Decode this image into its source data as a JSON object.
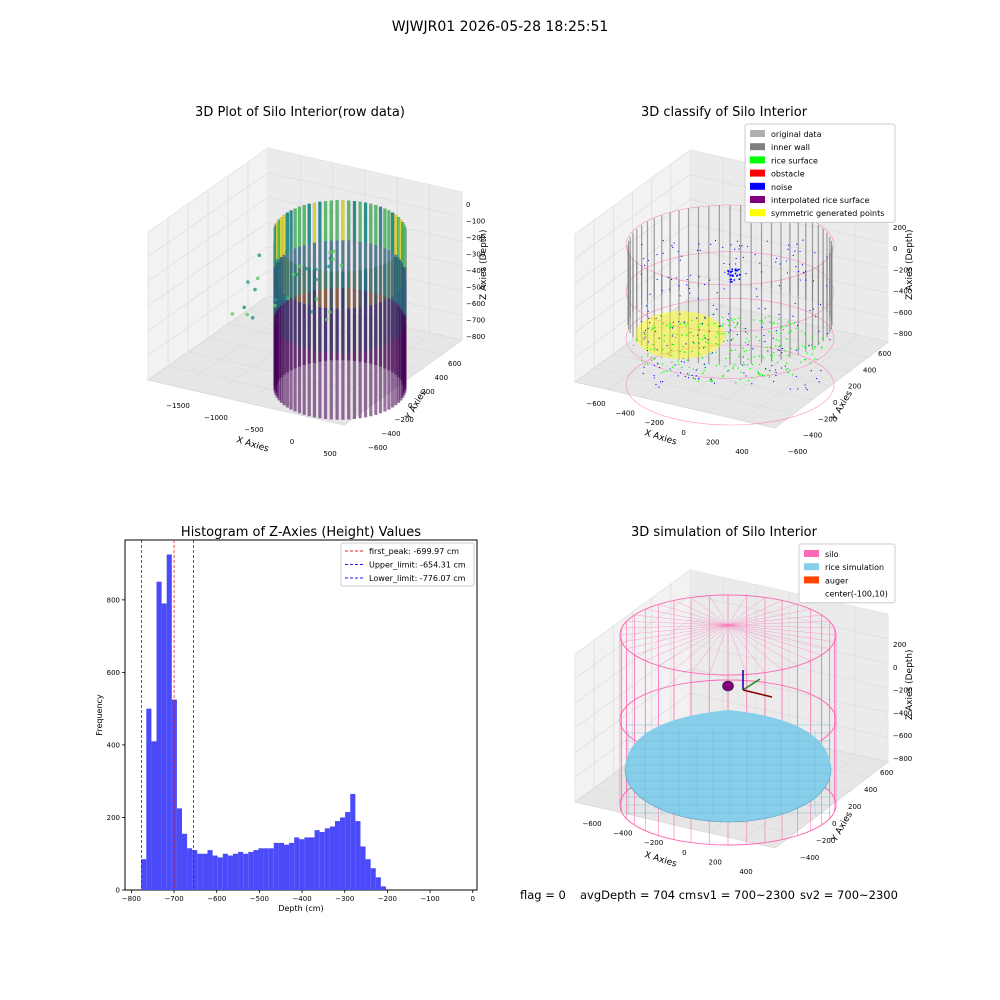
{
  "figure_title": "WJWJR01 2026-05-28 18:25:51",
  "colors": {
    "axis": "#000000",
    "pane": "#f2f2f2",
    "grid": "#d9d9d9",
    "hist_bar": "#4a4af8",
    "line_red": "#e02020",
    "line_blue": "#1a1af0",
    "viridis": [
      "#440154",
      "#3b528b",
      "#21918c",
      "#5ec962",
      "#fde725"
    ],
    "silo_pink": "#ff69b4",
    "rice_blue": "#87ceeb",
    "auger_orange": "#ff4500",
    "inner_wall_gray": "#808080",
    "noise_blue": "#0000ff",
    "rice_green": "#00ff00",
    "symmetric_yellow": "#ffff00",
    "interp_purple": "#800080",
    "obstacle_red": "#ff0000",
    "original_gray": "#b0b0b0"
  },
  "panels": {
    "raw": {
      "title": "3D Plot of Silo Interior(row data)",
      "xlabel": "X Axies",
      "ylabel": "Y Axies",
      "zlabel": "Z Axies (Depth)",
      "xticks": [
        "−1500",
        "−1000",
        "−500",
        "0",
        "500"
      ],
      "yticks": [
        "−600",
        "−400",
        "−200",
        "0",
        "200",
        "400",
        "600"
      ],
      "zticks": [
        "0",
        "−100",
        "−200",
        "−300",
        "−400",
        "−500",
        "−600",
        "−700",
        "−800"
      ]
    },
    "classify": {
      "title": "3D classify of Silo Interior",
      "xlabel": "X Axies",
      "ylabel": "Y Axies",
      "zlabel": "Z Axies (Depth)",
      "xticks": [
        "−600",
        "−400",
        "−200",
        "0",
        "200",
        "400"
      ],
      "yticks": [
        "−600",
        "−400",
        "−200",
        "0",
        "200",
        "400",
        "600"
      ],
      "zticks": [
        "200",
        "0",
        "−200",
        "−400",
        "−600",
        "−800"
      ],
      "legend": [
        {
          "label": "original data",
          "color": "#b0b0b0"
        },
        {
          "label": "inner wall",
          "color": "#808080"
        },
        {
          "label": "rice surface",
          "color": "#00ff00"
        },
        {
          "label": "obstacle",
          "color": "#ff0000"
        },
        {
          "label": "noise",
          "color": "#0000ff"
        },
        {
          "label": "interpolated rice surface",
          "color": "#800080"
        },
        {
          "label": "symmetric generated points",
          "color": "#ffff00"
        }
      ]
    },
    "simulation": {
      "title": "3D simulation of Silo Interior",
      "xlabel": "X Axies",
      "ylabel": "Y Axies",
      "zlabel": "Z Axies (Depth)",
      "xticks": [
        "−600",
        "−400",
        "−200",
        "0",
        "200",
        "400"
      ],
      "yticks": [
        "−400",
        "−200",
        "0",
        "200",
        "400",
        "600"
      ],
      "zticks": [
        "200",
        "0",
        "−200",
        "−400",
        "−600",
        "−800"
      ],
      "legend": [
        {
          "label": "silo",
          "color": "#ff69b4"
        },
        {
          "label": "rice simulation",
          "color": "#87ceeb"
        },
        {
          "label": "auger",
          "color": "#ff4500"
        },
        {
          "label": "center(-100,10)",
          "color": ""
        }
      ]
    }
  },
  "chart_data": {
    "type": "bar",
    "title": "Histogram of Z-Axies (Height) Values",
    "xlabel": "Depth (cm)",
    "ylabel": "Frequency",
    "xlim": [
      -815,
      10
    ],
    "ylim": [
      0,
      965
    ],
    "xticks": [
      -800,
      -700,
      -600,
      -500,
      -400,
      -300,
      -200,
      -100,
      0
    ],
    "yticks": [
      0,
      200,
      400,
      600,
      800
    ],
    "bin_start": -777,
    "bin_width": 11.95,
    "values": [
      85,
      500,
      410,
      850,
      790,
      925,
      525,
      225,
      155,
      115,
      110,
      100,
      100,
      110,
      95,
      90,
      100,
      95,
      100,
      105,
      100,
      105,
      110,
      115,
      115,
      115,
      130,
      130,
      125,
      130,
      145,
      140,
      145,
      145,
      165,
      160,
      170,
      175,
      190,
      200,
      215,
      265,
      190,
      120,
      85,
      60,
      35,
      10
    ],
    "vlines": [
      {
        "label": "first_peak: -699.97 cm",
        "x": -699.97,
        "color": "#e02020"
      },
      {
        "label": "Upper_limit: -654.31 cm",
        "x": -654.31,
        "color": "#1a1af0"
      },
      {
        "label": "Lower_limit: -776.07 cm",
        "x": -776.07,
        "color": "#1a1af0"
      }
    ],
    "legend_position": "top-right"
  },
  "status": {
    "flag": "flag = 0",
    "avg_depth": "avgDepth = 704 cm",
    "sv1": "sv1 = 700~2300",
    "sv2": "sv2 = 700~2300"
  }
}
